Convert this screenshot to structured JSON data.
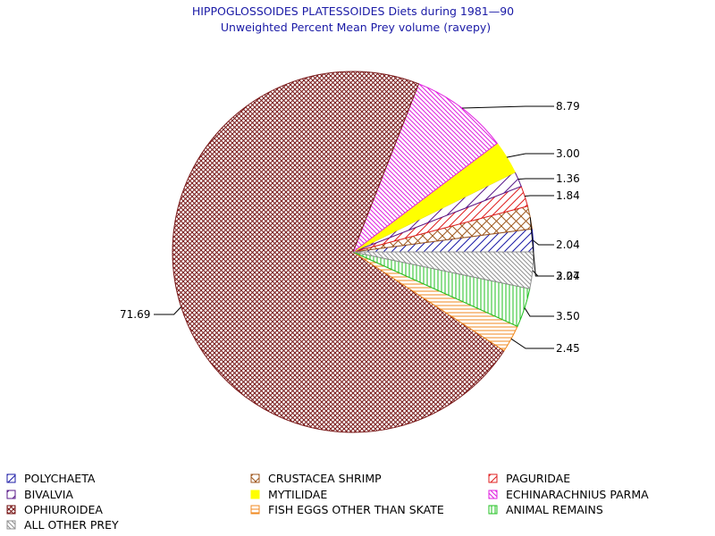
{
  "chart_data": {
    "type": "pie",
    "title": "HIPPOGLOSSOIDES PLATESSOIDES Diets during 1981—90",
    "subtitle": "Unweighted Percent Mean Prey volume (ravepy)",
    "slices": [
      {
        "name": "POLYCHAETA",
        "value": 2.04,
        "label": "2.04",
        "color": "#1a1aa6",
        "pattern": "diag-up"
      },
      {
        "name": "CRUSTACEA SHRIMP",
        "value": 2.04,
        "label": "2.04",
        "color": "#a05a20",
        "pattern": "crosshatch"
      },
      {
        "name": "PAGURIDAE",
        "value": 1.84,
        "label": "1.84",
        "color": "#e02020",
        "pattern": "diag-up"
      },
      {
        "name": "BIVALVIA",
        "value": 1.36,
        "label": "1.36",
        "color": "#5a1a8a",
        "pattern": "diag-up-wide"
      },
      {
        "name": "MYTILIDAE",
        "value": 3.0,
        "label": "3.00",
        "color": "#ffff00",
        "pattern": "solid"
      },
      {
        "name": "ECHINARACHNIUS PARMA",
        "value": 8.79,
        "label": "8.79",
        "color": "#e020e0",
        "pattern": "diag-down"
      },
      {
        "name": "OPHIUROIDEA",
        "value": 71.69,
        "label": "71.69",
        "color": "#7a1a1a",
        "pattern": "crosshatch-fine"
      },
      {
        "name": "FISH EGGS OTHER THAN SKATE",
        "value": 2.45,
        "label": "2.45",
        "color": "#f08a20",
        "pattern": "horizontal"
      },
      {
        "name": "ANIMAL REMAINS",
        "value": 3.5,
        "label": "3.50",
        "color": "#20c020",
        "pattern": "vertical"
      },
      {
        "name": "ALL OTHER PREY",
        "value": 3.27,
        "label": "3.27",
        "color": "#909090",
        "pattern": "diag-down"
      }
    ],
    "legend_placement": "bottom"
  }
}
